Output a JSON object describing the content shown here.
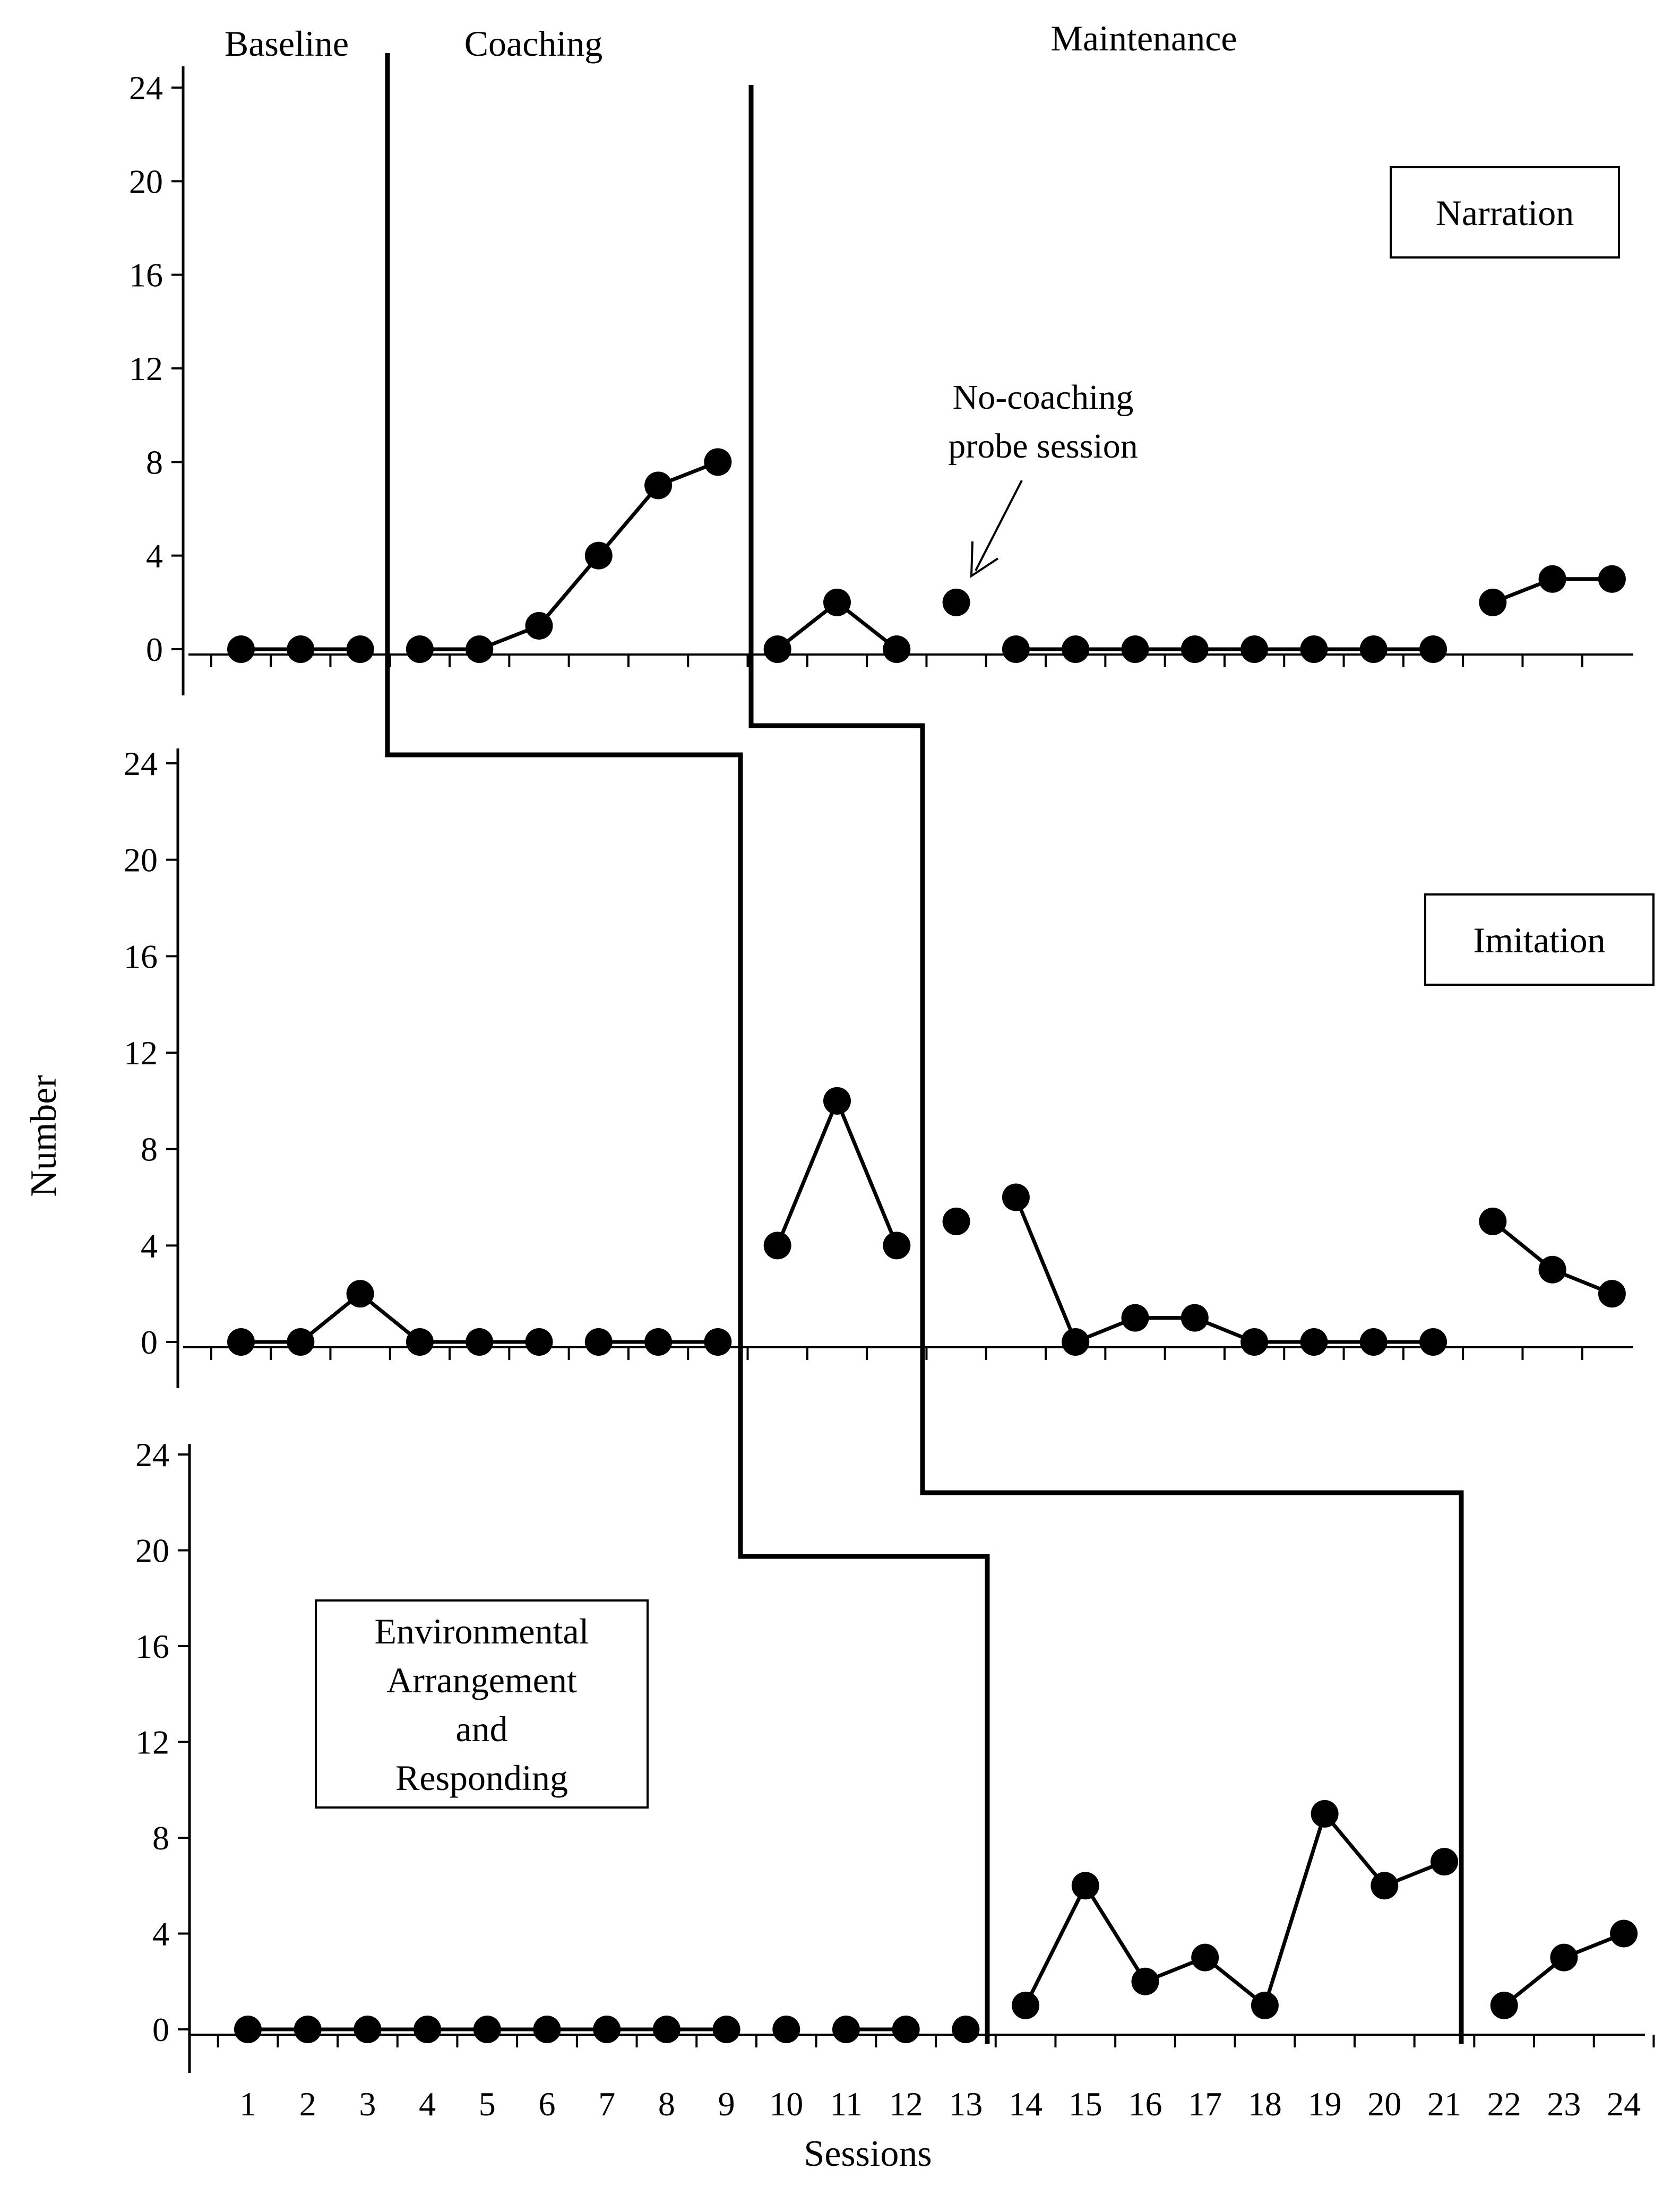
{
  "chart_data": {
    "type": "line",
    "xlabel": "Sessions",
    "ylabel": "Number",
    "x": [
      1,
      2,
      3,
      4,
      5,
      6,
      7,
      8,
      9,
      10,
      11,
      12,
      13,
      14,
      15,
      16,
      17,
      18,
      19,
      20,
      21,
      22,
      23,
      24
    ],
    "x_tick_labels": [
      "1",
      "2",
      "3",
      "4",
      "5",
      "6",
      "7",
      "8",
      "9",
      "10",
      "11",
      "12",
      "13",
      "14",
      "15",
      "16",
      "17",
      "18",
      "19",
      "20",
      "21",
      "22",
      "23",
      "24"
    ],
    "y_ticks": [
      0,
      4,
      8,
      12,
      16,
      20,
      24
    ],
    "y_tick_labels": [
      "0",
      "4",
      "8",
      "12",
      "16",
      "20",
      "24"
    ],
    "ylim": [
      0,
      24
    ],
    "xlim": [
      0,
      24
    ],
    "grid": false,
    "phases": [
      "Baseline",
      "Coaching",
      "Maintenance"
    ],
    "marker": "filled-circle",
    "line_color": "#000000",
    "panels": [
      {
        "name": "Narration",
        "values": [
          0,
          0,
          0,
          0,
          0,
          1,
          4,
          7,
          8,
          0,
          2,
          0,
          2,
          0,
          0,
          0,
          0,
          0,
          0,
          0,
          0,
          2,
          3,
          3
        ],
        "segments": [
          [
            1,
            3
          ],
          [
            4,
            9
          ],
          [
            10,
            12
          ],
          [
            13,
            13
          ],
          [
            14,
            21
          ],
          [
            22,
            24
          ]
        ],
        "phase_changes": [
          3.5,
          9.5
        ],
        "annotation": {
          "lines": [
            "No-coaching",
            "probe session"
          ],
          "points_to_session": 13
        }
      },
      {
        "name": "Imitation",
        "values": [
          0,
          0,
          2,
          0,
          0,
          0,
          0,
          0,
          0,
          4,
          10,
          4,
          5,
          6,
          0,
          1,
          1,
          0,
          0,
          0,
          0,
          5,
          3,
          2
        ],
        "segments": [
          [
            1,
            6
          ],
          [
            7,
            9
          ],
          [
            10,
            12
          ],
          [
            13,
            13
          ],
          [
            14,
            21
          ],
          [
            22,
            24
          ]
        ],
        "phase_changes": [
          9.5,
          12.5
        ]
      },
      {
        "name": "Environmental Arrangement and Responding",
        "label_lines": [
          "Environmental",
          "Arrangement",
          "and",
          "Responding"
        ],
        "values": [
          0,
          0,
          0,
          0,
          0,
          0,
          0,
          0,
          0,
          0,
          0,
          0,
          0,
          1,
          6,
          2,
          3,
          1,
          9,
          6,
          7,
          1,
          3,
          4
        ],
        "segments": [
          [
            1,
            9
          ],
          [
            10,
            10
          ],
          [
            11,
            12
          ],
          [
            13,
            13
          ],
          [
            14,
            21
          ],
          [
            22,
            24
          ]
        ],
        "phase_changes": [
          13.5,
          21.5
        ]
      }
    ]
  }
}
